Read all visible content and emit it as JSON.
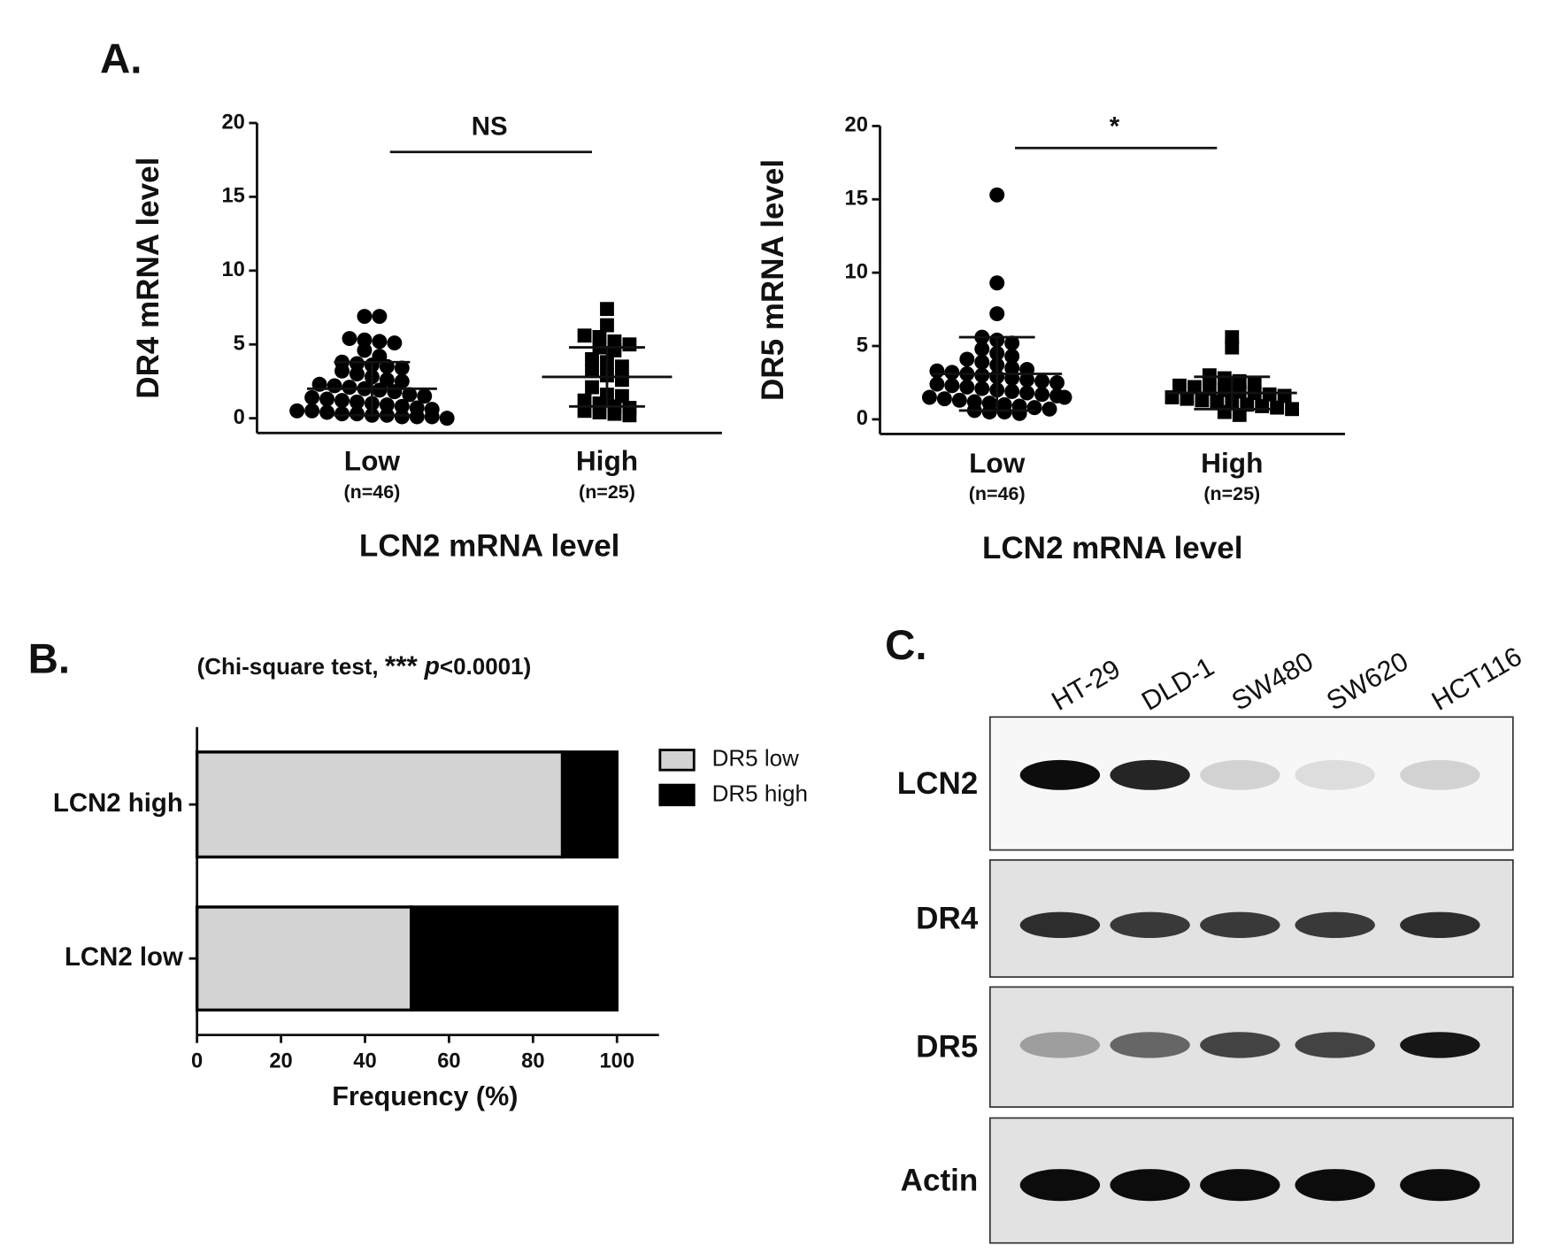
{
  "panel_labels": [
    "A.",
    "B.",
    "C."
  ],
  "chart_data": [
    {
      "type": "dotplot",
      "ylabel": "DR4 mRNA level",
      "xlabel": "LCN2 mRNA level",
      "categories": [
        "Low",
        "High"
      ],
      "category_notes": [
        "(n=46)",
        "(n=25)"
      ],
      "annotation": "NS",
      "ylim": [
        -1,
        20
      ],
      "yticks": [
        0,
        5,
        10,
        15,
        20
      ],
      "groups": [
        {
          "marker": "circle",
          "mean": 2.0,
          "sd": 1.8,
          "values": [
            6.9,
            6.9,
            5.4,
            5.3,
            5.2,
            5.1,
            4.6,
            4.2,
            3.8,
            3.7,
            3.6,
            3.5,
            3.4,
            3.2,
            3.0,
            2.8,
            2.6,
            2.5,
            2.3,
            2.2,
            2.1,
            2.0,
            1.9,
            1.8,
            1.6,
            1.5,
            1.4,
            1.3,
            1.2,
            1.1,
            1.0,
            0.9,
            0.8,
            0.7,
            0.6,
            0.5,
            0.5,
            0.4,
            0.3,
            0.3,
            0.2,
            0.2,
            0.1,
            0.1,
            0.1,
            0.0
          ]
        },
        {
          "marker": "square",
          "mean": 2.8,
          "sd": 2.0,
          "values": [
            7.4,
            6.3,
            5.6,
            5.5,
            5.2,
            5.0,
            4.8,
            4.6,
            4.0,
            3.8,
            3.5,
            3.2,
            2.9,
            2.6,
            2.1,
            1.6,
            1.5,
            1.2,
            1.0,
            0.8,
            0.7,
            0.5,
            0.4,
            0.3,
            0.2
          ]
        }
      ]
    },
    {
      "type": "dotplot",
      "ylabel": "DR5 mRNA level",
      "xlabel": "LCN2 mRNA level",
      "categories": [
        "Low",
        "High"
      ],
      "category_notes": [
        "(n=46)",
        "(n=25)"
      ],
      "annotation": "*",
      "ylim": [
        -1,
        20
      ],
      "yticks": [
        0,
        5,
        10,
        15,
        20
      ],
      "groups": [
        {
          "marker": "circle",
          "mean": 3.1,
          "sd": 2.5,
          "values": [
            15.3,
            9.3,
            7.2,
            5.6,
            5.4,
            5.2,
            4.8,
            4.5,
            4.3,
            4.1,
            3.9,
            3.7,
            3.5,
            3.4,
            3.3,
            3.2,
            3.1,
            3.0,
            2.9,
            2.8,
            2.7,
            2.6,
            2.5,
            2.4,
            2.3,
            2.2,
            2.1,
            2.0,
            1.9,
            1.8,
            1.7,
            1.6,
            1.5,
            1.4,
            1.3,
            1.2,
            1.1,
            1.0,
            0.9,
            0.8,
            0.7,
            0.6,
            0.5,
            0.5,
            0.4,
            1.5
          ]
        },
        {
          "marker": "square",
          "mean": 1.8,
          "sd": 1.1,
          "values": [
            5.6,
            4.9,
            3.0,
            2.8,
            2.6,
            2.5,
            2.3,
            2.2,
            2.1,
            2.0,
            1.9,
            1.8,
            1.7,
            1.6,
            1.5,
            1.4,
            1.3,
            1.2,
            1.1,
            1.0,
            0.9,
            0.8,
            0.7,
            0.5,
            0.3
          ]
        }
      ]
    },
    {
      "type": "stacked-barh",
      "annotation_parts": [
        "(Chi-square test, ",
        "***",
        " p",
        "<0.0001)"
      ],
      "xlabel": "Frequency (%)",
      "categories": [
        "LCN2 high",
        "LCN2 low"
      ],
      "series": [
        {
          "name": "DR5 low",
          "color": "#d3d3d3",
          "values": [
            87,
            51
          ]
        },
        {
          "name": "DR5 high",
          "color": "#000000",
          "values": [
            13,
            49
          ]
        }
      ],
      "xlim": [
        0,
        110
      ],
      "xticks": [
        0,
        20,
        40,
        60,
        80,
        100
      ],
      "legend": "right"
    }
  ],
  "blot": {
    "cell_lines": [
      "HT-29",
      "DLD-1",
      "SW480",
      "SW620",
      "HCT116"
    ],
    "proteins": [
      "LCN2",
      "DR4",
      "DR5",
      "Actin"
    ]
  }
}
